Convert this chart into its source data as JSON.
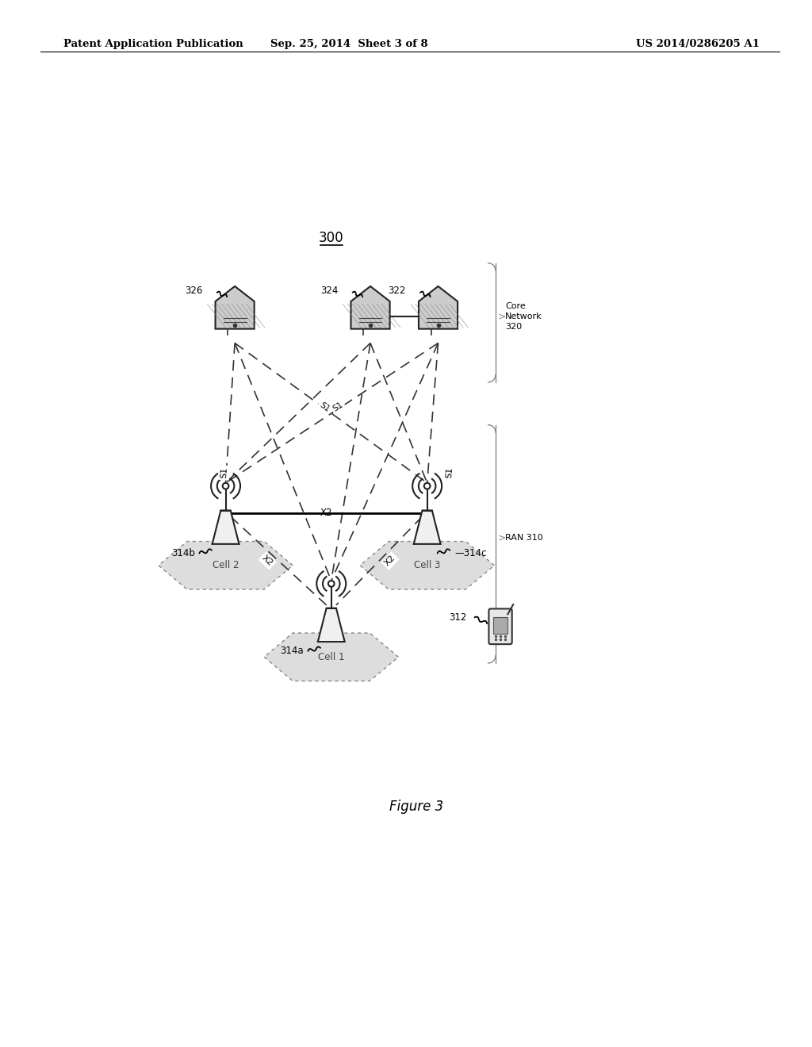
{
  "header_left": "Patent Application Publication",
  "header_center": "Sep. 25, 2014  Sheet 3 of 8",
  "header_right": "US 2014/0286205 A1",
  "figure_label": "Figure 3",
  "diagram_label": "300",
  "core_network_label": "Core\nNetwork\n320",
  "ran_label": "RAN 310",
  "server_labels": [
    "326",
    "324",
    "322"
  ],
  "bs_labels": [
    "314b",
    "314c",
    "314a"
  ],
  "cell_labels": [
    "Cell 2",
    "Cell 3",
    "Cell 1"
  ],
  "ue_label": "312",
  "bg_color": "#ffffff",
  "text_color": "#000000"
}
